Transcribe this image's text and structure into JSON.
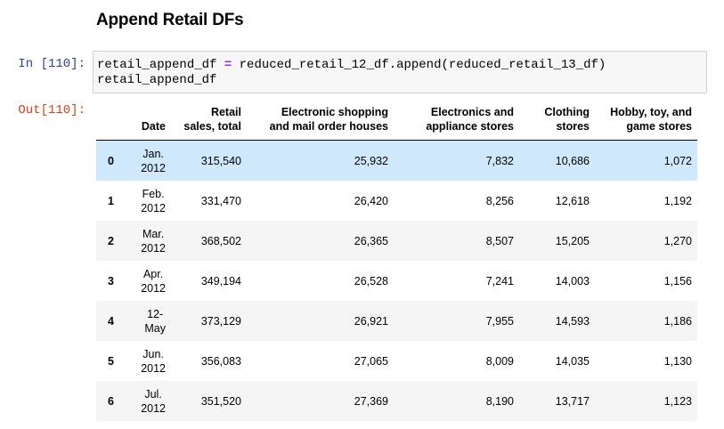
{
  "heading": "Append Retail DFs",
  "input_prompt": "In [110]:",
  "output_prompt": "Out[110]:",
  "code": {
    "line1_left": "retail_append_df ",
    "line1_op": "=",
    "line1_right": " reduced_retail_12_df.append(reduced_retail_13_df)",
    "line2": "retail_append_df"
  },
  "table": {
    "columns": [
      {
        "line1": "",
        "line2": ""
      },
      {
        "line1": "",
        "line2": "Date"
      },
      {
        "line1": "Retail",
        "line2": "sales, total"
      },
      {
        "line1": "Electronic shopping",
        "line2": "and mail order houses"
      },
      {
        "line1": "Electronics and",
        "line2": "appliance stores"
      },
      {
        "line1": "Clothing",
        "line2": "stores"
      },
      {
        "line1": "Hobby, toy, and",
        "line2": "game stores"
      }
    ],
    "rows": [
      {
        "index": "0",
        "date1": "Jan.",
        "date2": "2012",
        "retail": "315,540",
        "electronic_shopping": "25,932",
        "electronics": "7,832",
        "clothing": "10,686",
        "hobby": "1,072"
      },
      {
        "index": "1",
        "date1": "Feb.",
        "date2": "2012",
        "retail": "331,470",
        "electronic_shopping": "26,420",
        "electronics": "8,256",
        "clothing": "12,618",
        "hobby": "1,192"
      },
      {
        "index": "2",
        "date1": "Mar.",
        "date2": "2012",
        "retail": "368,502",
        "electronic_shopping": "26,365",
        "electronics": "8,507",
        "clothing": "15,205",
        "hobby": "1,270"
      },
      {
        "index": "3",
        "date1": "Apr.",
        "date2": "2012",
        "retail": "349,194",
        "electronic_shopping": "26,528",
        "electronics": "7,241",
        "clothing": "14,003",
        "hobby": "1,156"
      },
      {
        "index": "4",
        "date1": "12-",
        "date2": "May",
        "retail": "373,129",
        "electronic_shopping": "26,921",
        "electronics": "7,955",
        "clothing": "14,593",
        "hobby": "1,186"
      },
      {
        "index": "5",
        "date1": "Jun.",
        "date2": "2012",
        "retail": "356,083",
        "electronic_shopping": "27,065",
        "electronics": "8,009",
        "clothing": "14,035",
        "hobby": "1,130"
      },
      {
        "index": "6",
        "date1": "Jul.",
        "date2": "2012",
        "retail": "351,520",
        "electronic_shopping": "27,369",
        "electronics": "8,190",
        "clothing": "13,717",
        "hobby": "1,123"
      }
    ]
  }
}
